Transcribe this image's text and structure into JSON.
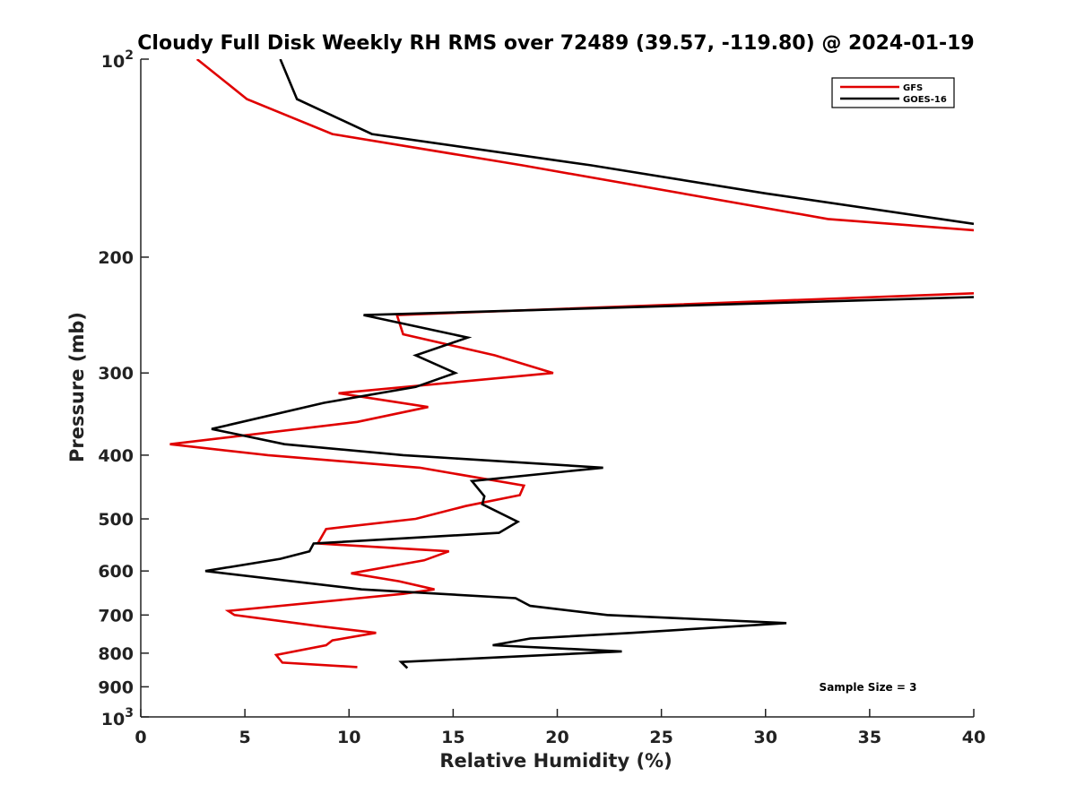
{
  "chart_data": {
    "type": "line",
    "title": "Cloudy Full Disk Weekly RH RMS over 72489 (39.57, -119.80) @ 2024-01-19",
    "xlabel": "Relative Humidity (%)",
    "ylabel": "Pressure (mb)",
    "xlim": [
      0,
      40
    ],
    "ylim": [
      100,
      1000
    ],
    "y_scale": "log",
    "y_reversed": true,
    "grid": false,
    "legend_position": "top-right",
    "annotation": "Sample Size = 3",
    "x_ticks": [
      "0",
      "5",
      "10",
      "15",
      "20",
      "25",
      "30",
      "35",
      "40"
    ],
    "y_ticks": [
      {
        "value": 100,
        "base": "10",
        "exp": "2"
      },
      {
        "value": 200,
        "label": "200"
      },
      {
        "value": 300,
        "label": "300"
      },
      {
        "value": 400,
        "label": "400"
      },
      {
        "value": 500,
        "label": "500"
      },
      {
        "value": 600,
        "label": "600"
      },
      {
        "value": 700,
        "label": "700"
      },
      {
        "value": 800,
        "label": "800"
      },
      {
        "value": 900,
        "label": "900"
      },
      {
        "value": 1000,
        "base": "10",
        "exp": "3"
      }
    ],
    "series": [
      {
        "name": "GFS",
        "color": "#e00000",
        "segments": [
          [
            [
              2.7,
              100
            ],
            [
              5.1,
              115
            ],
            [
              9.2,
              130
            ],
            [
              18.3,
              145
            ],
            [
              33,
              175
            ],
            [
              40,
              182
            ]
          ],
          [
            [
              40,
              227
            ],
            [
              12.3,
              245
            ],
            [
              12.6,
              262
            ],
            [
              17,
              282
            ],
            [
              19.8,
              300
            ],
            [
              9.5,
              322
            ],
            [
              13.8,
              338
            ],
            [
              10.4,
              356
            ],
            [
              1.4,
              385
            ],
            [
              6.1,
              400
            ],
            [
              13.4,
              418
            ],
            [
              18.4,
              445
            ],
            [
              18.2,
              460
            ],
            [
              15.6,
              478
            ],
            [
              13.2,
              500
            ],
            [
              8.9,
              518
            ],
            [
              8.5,
              545
            ],
            [
              14.8,
              560
            ],
            [
              13.6,
              578
            ],
            [
              10.1,
              605
            ],
            [
              12.4,
              622
            ],
            [
              14.1,
              640
            ],
            [
              12.6,
              650
            ],
            [
              4.2,
              690
            ],
            [
              4.5,
              700
            ],
            [
              8.6,
              728
            ],
            [
              11.3,
              745
            ],
            [
              9.2,
              765
            ],
            [
              8.9,
              778
            ],
            [
              6.5,
              805
            ],
            [
              6.8,
              827
            ],
            [
              10.4,
              840
            ]
          ]
        ]
      },
      {
        "name": "GOES-16",
        "color": "#000000",
        "segments": [
          [
            [
              6.7,
              100
            ],
            [
              7.5,
              115
            ],
            [
              11.1,
              130
            ],
            [
              21.6,
              145
            ],
            [
              30,
              160
            ],
            [
              40,
              178
            ]
          ],
          [
            [
              40,
              230
            ],
            [
              10.7,
              245
            ],
            [
              15.7,
              265
            ],
            [
              13.2,
              282
            ],
            [
              15.1,
              300
            ],
            [
              13.2,
              315
            ],
            [
              8.8,
              333
            ],
            [
              3.4,
              365
            ],
            [
              6.9,
              385
            ],
            [
              12.6,
              400
            ],
            [
              22.2,
              418
            ],
            [
              15.9,
              438
            ],
            [
              16.5,
              462
            ],
            [
              16.4,
              475
            ],
            [
              18.1,
              505
            ],
            [
              17.2,
              525
            ],
            [
              8.3,
              545
            ],
            [
              8.1,
              560
            ],
            [
              6.7,
              575
            ],
            [
              3.1,
              600
            ],
            [
              10.6,
              640
            ],
            [
              18.0,
              660
            ],
            [
              18.7,
              678
            ],
            [
              22.4,
              700
            ],
            [
              31.0,
              720
            ],
            [
              23.6,
              745
            ],
            [
              18.7,
              760
            ],
            [
              16.9,
              778
            ],
            [
              23.1,
              795
            ],
            [
              12.5,
              825
            ],
            [
              12.8,
              843
            ]
          ]
        ]
      }
    ]
  }
}
